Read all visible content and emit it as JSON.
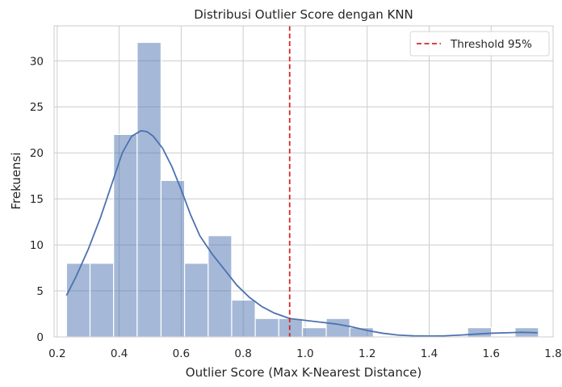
{
  "chart_data": {
    "type": "histogram",
    "title": "Distribusi Outlier Score dengan KNN",
    "xlabel": "Outlier Score (Max K-Nearest Distance)",
    "ylabel": "Frekuensi",
    "xlim": [
      0.19,
      1.8
    ],
    "ylim": [
      0,
      33.8
    ],
    "xticks": [
      0.2,
      0.4,
      0.6,
      0.8,
      1.0,
      1.2,
      1.4,
      1.6,
      1.8
    ],
    "xtick_labels": [
      "0.2",
      "0.4",
      "0.6",
      "0.8",
      "1.0",
      "1.2",
      "1.4",
      "1.6",
      "1.8"
    ],
    "yticks": [
      0,
      5,
      10,
      15,
      20,
      25,
      30
    ],
    "ytick_labels": [
      "0",
      "5",
      "10",
      "15",
      "20",
      "25",
      "30"
    ],
    "grid": true,
    "legend": {
      "position": "top-right",
      "entries": [
        "Threshold 95%"
      ]
    },
    "bar_color": "#4c72b0",
    "kde_color": "#4c72b0",
    "threshold_color": "#d62728",
    "bins": [
      {
        "x0": 0.23,
        "x1": 0.306,
        "count": 8
      },
      {
        "x0": 0.306,
        "x1": 0.382,
        "count": 8
      },
      {
        "x0": 0.382,
        "x1": 0.458,
        "count": 22
      },
      {
        "x0": 0.458,
        "x1": 0.535,
        "count": 32
      },
      {
        "x0": 0.535,
        "x1": 0.611,
        "count": 17
      },
      {
        "x0": 0.611,
        "x1": 0.687,
        "count": 8
      },
      {
        "x0": 0.687,
        "x1": 0.763,
        "count": 11
      },
      {
        "x0": 0.763,
        "x1": 0.839,
        "count": 4
      },
      {
        "x0": 0.839,
        "x1": 0.915,
        "count": 2
      },
      {
        "x0": 0.915,
        "x1": 0.991,
        "count": 2
      },
      {
        "x0": 0.991,
        "x1": 1.068,
        "count": 1
      },
      {
        "x0": 1.068,
        "x1": 1.144,
        "count": 2
      },
      {
        "x0": 1.144,
        "x1": 1.22,
        "count": 1
      },
      {
        "x0": 1.22,
        "x1": 1.296,
        "count": 0
      },
      {
        "x0": 1.296,
        "x1": 1.372,
        "count": 0
      },
      {
        "x0": 1.372,
        "x1": 1.448,
        "count": 0
      },
      {
        "x0": 1.448,
        "x1": 1.524,
        "count": 0
      },
      {
        "x0": 1.524,
        "x1": 1.601,
        "count": 1
      },
      {
        "x0": 1.601,
        "x1": 1.677,
        "count": 0
      },
      {
        "x0": 1.677,
        "x1": 1.753,
        "count": 1
      }
    ],
    "threshold": {
      "name": "Threshold 95%",
      "x": 0.95
    },
    "kde": {
      "x": [
        0.23,
        0.26,
        0.3,
        0.34,
        0.38,
        0.41,
        0.44,
        0.47,
        0.49,
        0.51,
        0.54,
        0.57,
        0.6,
        0.63,
        0.66,
        0.7,
        0.74,
        0.78,
        0.82,
        0.86,
        0.9,
        0.95,
        1.0,
        1.05,
        1.1,
        1.15,
        1.2,
        1.25,
        1.3,
        1.35,
        1.4,
        1.45,
        1.5,
        1.55,
        1.6,
        1.65,
        1.7,
        1.75
      ],
      "y": [
        4.5,
        6.5,
        9.5,
        13.0,
        17.0,
        20.0,
        21.8,
        22.4,
        22.3,
        21.8,
        20.5,
        18.5,
        16.0,
        13.3,
        11.0,
        9.0,
        7.3,
        5.6,
        4.3,
        3.3,
        2.6,
        2.0,
        1.8,
        1.6,
        1.4,
        1.1,
        0.7,
        0.4,
        0.2,
        0.12,
        0.1,
        0.12,
        0.2,
        0.3,
        0.4,
        0.45,
        0.5,
        0.45
      ]
    }
  }
}
